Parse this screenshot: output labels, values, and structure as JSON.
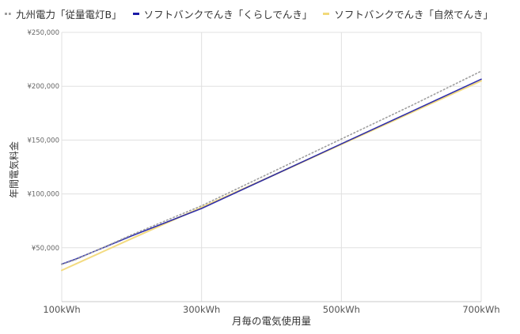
{
  "chart_data": {
    "type": "line",
    "xlabel": "月毎の電気使用量",
    "ylabel": "年間電気料金",
    "x_unit": "kWh",
    "xlim": [
      100,
      700
    ],
    "ylim": [
      0,
      250000
    ],
    "x_ticks": [
      {
        "value": 100,
        "label": "100kWh"
      },
      {
        "value": 300,
        "label": "300kWh"
      },
      {
        "value": 500,
        "label": "500kWh"
      },
      {
        "value": 700,
        "label": "700kWh"
      }
    ],
    "y_ticks": [
      {
        "value": 50000,
        "label": "¥50,000"
      },
      {
        "value": 100000,
        "label": "¥100,000"
      },
      {
        "value": 150000,
        "label": "¥150,000"
      },
      {
        "value": 200000,
        "label": "¥200,000"
      },
      {
        "value": 250000,
        "label": "¥250,000"
      }
    ],
    "grid": true,
    "legend_position": "top",
    "series": [
      {
        "name": "九州電力「従量電灯B」",
        "color": "#9e9e9e",
        "style": "dotted",
        "x": [
          100,
          120,
          200,
          300,
          400,
          500,
          600,
          700
        ],
        "y": [
          34500,
          39000,
          62000,
          89000,
          120000,
          151000,
          182000,
          214000
        ]
      },
      {
        "name": "ソフトバンクでんき「くらしでんき」",
        "color": "#1a1aa6",
        "style": "solid",
        "x": [
          100,
          120,
          200,
          300,
          400,
          500,
          600,
          700
        ],
        "y": [
          34800,
          39500,
          61000,
          86500,
          116500,
          146500,
          176500,
          206500
        ]
      },
      {
        "name": "ソフトバンクでんき「自然でんき」",
        "color": "#f2d97a",
        "style": "solid",
        "x": [
          100,
          120,
          200,
          300,
          400,
          500,
          600,
          700
        ],
        "y": [
          29000,
          35000,
          58500,
          87500,
          116500,
          146000,
          175500,
          205000
        ]
      }
    ]
  }
}
